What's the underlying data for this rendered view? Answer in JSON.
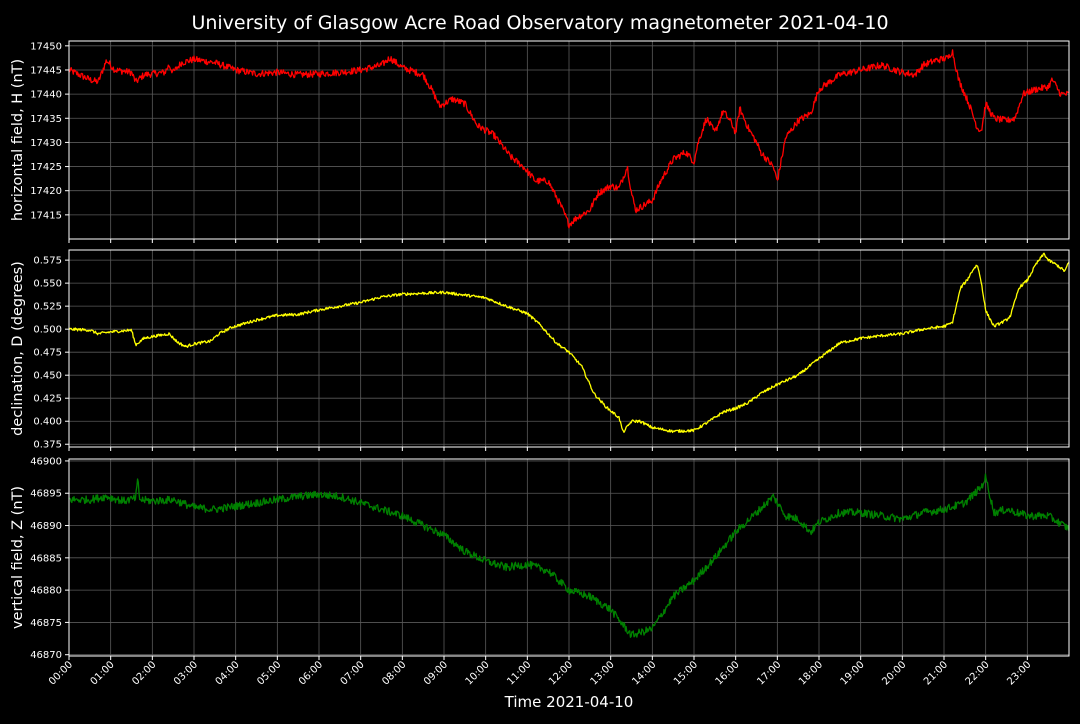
{
  "chart_data": {
    "type": "line",
    "title": "University of Glasgow Acre Road Observatory magnetometer 2021-04-10",
    "xlabel": "Time 2021-04-10",
    "x_ticks": [
      "00:00",
      "01:00",
      "02:00",
      "03:00",
      "04:00",
      "05:00",
      "06:00",
      "07:00",
      "08:00",
      "09:00",
      "10:00",
      "11:00",
      "12:00",
      "13:00",
      "14:00",
      "15:00",
      "16:00",
      "17:00",
      "18:00",
      "19:00",
      "20:00",
      "21:00",
      "22:00",
      "23:00"
    ],
    "xlim_hours": [
      0,
      24
    ],
    "grid": true,
    "background": "#000000",
    "panels": [
      {
        "ylabel": "horizontal field, H (nT)",
        "color": "#ff0000",
        "ylim": [
          17410,
          17451
        ],
        "y_ticks": [
          17415,
          17420,
          17425,
          17430,
          17435,
          17440,
          17445,
          17450
        ],
        "y_tick_decimals": 0,
        "noise": 0.7,
        "points": [
          [
            0,
            17445
          ],
          [
            0.5,
            17443
          ],
          [
            0.7,
            17442.5
          ],
          [
            0.9,
            17447
          ],
          [
            1.1,
            17445
          ],
          [
            1.5,
            17444.5
          ],
          [
            1.6,
            17442.5
          ],
          [
            1.8,
            17444
          ],
          [
            2.3,
            17444.5
          ],
          [
            2.4,
            17446
          ],
          [
            2.5,
            17444.5
          ],
          [
            2.7,
            17446.5
          ],
          [
            3.0,
            17447.2
          ],
          [
            3.5,
            17446.5
          ],
          [
            4.0,
            17445
          ],
          [
            4.5,
            17444.2
          ],
          [
            5.0,
            17444.5
          ],
          [
            5.5,
            17444
          ],
          [
            6.0,
            17444.2
          ],
          [
            6.5,
            17444.5
          ],
          [
            7.0,
            17445
          ],
          [
            7.5,
            17446
          ],
          [
            7.7,
            17447.5
          ],
          [
            8.0,
            17445.5
          ],
          [
            8.5,
            17444
          ],
          [
            8.7,
            17441
          ],
          [
            8.9,
            17437.5
          ],
          [
            9.2,
            17439
          ],
          [
            9.5,
            17438
          ],
          [
            9.8,
            17433.5
          ],
          [
            10.2,
            17431.5
          ],
          [
            10.6,
            17427
          ],
          [
            10.9,
            17425
          ],
          [
            11.2,
            17422
          ],
          [
            11.5,
            17422
          ],
          [
            11.8,
            17417
          ],
          [
            12.0,
            17413
          ],
          [
            12.2,
            17414.5
          ],
          [
            12.5,
            17416
          ],
          [
            12.7,
            17419.5
          ],
          [
            13.0,
            17421
          ],
          [
            13.2,
            17420.5
          ],
          [
            13.4,
            17425
          ],
          [
            13.5,
            17419.5
          ],
          [
            13.6,
            17416
          ],
          [
            13.8,
            17417
          ],
          [
            14.0,
            17418
          ],
          [
            14.2,
            17422
          ],
          [
            14.5,
            17426.5
          ],
          [
            14.8,
            17428
          ],
          [
            15.0,
            17426
          ],
          [
            15.1,
            17430
          ],
          [
            15.3,
            17435
          ],
          [
            15.5,
            17432
          ],
          [
            15.7,
            17436.5
          ],
          [
            15.9,
            17434
          ],
          [
            16.0,
            17432
          ],
          [
            16.1,
            17437
          ],
          [
            16.3,
            17433
          ],
          [
            16.5,
            17430
          ],
          [
            16.6,
            17428
          ],
          [
            16.9,
            17425
          ],
          [
            17.0,
            17422
          ],
          [
            17.2,
            17431
          ],
          [
            17.5,
            17434.5
          ],
          [
            17.8,
            17436
          ],
          [
            18.0,
            17441
          ],
          [
            18.5,
            17444
          ],
          [
            19.0,
            17445
          ],
          [
            19.5,
            17446
          ],
          [
            20.0,
            17444.5
          ],
          [
            20.3,
            17444
          ],
          [
            20.5,
            17446
          ],
          [
            20.8,
            17447
          ],
          [
            21.1,
            17447.5
          ],
          [
            21.2,
            17449
          ],
          [
            21.35,
            17443
          ],
          [
            21.6,
            17438
          ],
          [
            21.8,
            17433
          ],
          [
            21.9,
            17432.5
          ],
          [
            22.0,
            17438
          ],
          [
            22.2,
            17435
          ],
          [
            22.5,
            17434.5
          ],
          [
            22.7,
            17435
          ],
          [
            22.9,
            17440
          ],
          [
            23.2,
            17441
          ],
          [
            23.5,
            17441.5
          ],
          [
            23.6,
            17443
          ],
          [
            23.8,
            17440
          ],
          [
            24.0,
            17440
          ]
        ]
      },
      {
        "ylabel": "declination, D (degrees)",
        "color": "#ffff00",
        "ylim": [
          0.372,
          0.586
        ],
        "y_ticks": [
          0.375,
          0.4,
          0.425,
          0.45,
          0.475,
          0.5,
          0.525,
          0.55,
          0.575
        ],
        "y_tick_decimals": 3,
        "noise": 0.0015,
        "points": [
          [
            0,
            0.5
          ],
          [
            0.5,
            0.499
          ],
          [
            0.7,
            0.495
          ],
          [
            1.0,
            0.497
          ],
          [
            1.5,
            0.499
          ],
          [
            1.6,
            0.483
          ],
          [
            1.8,
            0.49
          ],
          [
            2.0,
            0.492
          ],
          [
            2.4,
            0.495
          ],
          [
            2.6,
            0.486
          ],
          [
            2.8,
            0.481
          ],
          [
            3.0,
            0.484
          ],
          [
            3.4,
            0.487
          ],
          [
            3.6,
            0.495
          ],
          [
            3.9,
            0.502
          ],
          [
            4.5,
            0.51
          ],
          [
            5.0,
            0.515
          ],
          [
            5.5,
            0.516
          ],
          [
            6.0,
            0.521
          ],
          [
            7.0,
            0.529
          ],
          [
            7.5,
            0.535
          ],
          [
            8.0,
            0.538
          ],
          [
            8.5,
            0.539
          ],
          [
            9.0,
            0.54
          ],
          [
            10.0,
            0.534
          ],
          [
            10.5,
            0.525
          ],
          [
            11.0,
            0.517
          ],
          [
            11.3,
            0.505
          ],
          [
            11.7,
            0.485
          ],
          [
            12.0,
            0.475
          ],
          [
            12.3,
            0.46
          ],
          [
            12.6,
            0.43
          ],
          [
            12.9,
            0.415
          ],
          [
            13.2,
            0.404
          ],
          [
            13.3,
            0.388
          ],
          [
            13.5,
            0.4
          ],
          [
            13.7,
            0.4
          ],
          [
            14.0,
            0.393
          ],
          [
            14.5,
            0.389
          ],
          [
            15.0,
            0.39
          ],
          [
            15.3,
            0.398
          ],
          [
            15.7,
            0.41
          ],
          [
            16.0,
            0.414
          ],
          [
            16.3,
            0.42
          ],
          [
            16.6,
            0.43
          ],
          [
            17.0,
            0.44
          ],
          [
            17.5,
            0.45
          ],
          [
            18.0,
            0.468
          ],
          [
            18.5,
            0.485
          ],
          [
            19.0,
            0.49
          ],
          [
            19.5,
            0.493
          ],
          [
            20.0,
            0.495
          ],
          [
            20.5,
            0.5
          ],
          [
            21.0,
            0.503
          ],
          [
            21.2,
            0.507
          ],
          [
            21.4,
            0.545
          ],
          [
            21.55,
            0.553
          ],
          [
            21.7,
            0.565
          ],
          [
            21.8,
            0.57
          ],
          [
            21.9,
            0.55
          ],
          [
            22.0,
            0.52
          ],
          [
            22.2,
            0.503
          ],
          [
            22.5,
            0.51
          ],
          [
            22.6,
            0.515
          ],
          [
            22.8,
            0.545
          ],
          [
            23.0,
            0.553
          ],
          [
            23.2,
            0.57
          ],
          [
            23.4,
            0.582
          ],
          [
            23.5,
            0.575
          ],
          [
            23.7,
            0.57
          ],
          [
            23.9,
            0.563
          ],
          [
            24.0,
            0.573
          ]
        ]
      },
      {
        "ylabel": "vertical field, Z (nT)",
        "color": "#008000",
        "ylim": [
          46869.8,
          46900.3
        ],
        "y_ticks": [
          46870,
          46875,
          46880,
          46885,
          46890,
          46895,
          46900
        ],
        "y_tick_decimals": 0,
        "noise": 0.6,
        "points": [
          [
            0,
            46894
          ],
          [
            0.5,
            46894
          ],
          [
            0.9,
            46894.5
          ],
          [
            1.3,
            46893.8
          ],
          [
            1.6,
            46894.2
          ],
          [
            1.65,
            46897
          ],
          [
            1.7,
            46894
          ],
          [
            2.0,
            46893.8
          ],
          [
            2.5,
            46894
          ],
          [
            3.0,
            46892.8
          ],
          [
            3.5,
            46892.5
          ],
          [
            4.0,
            46893
          ],
          [
            4.5,
            46893.5
          ],
          [
            5.0,
            46894
          ],
          [
            5.5,
            46894.5
          ],
          [
            6.0,
            46894.8
          ],
          [
            6.5,
            46894.5
          ],
          [
            7.0,
            46893.5
          ],
          [
            7.5,
            46892.5
          ],
          [
            8.0,
            46891.5
          ],
          [
            8.5,
            46890
          ],
          [
            9.0,
            46888.5
          ],
          [
            9.5,
            46886
          ],
          [
            10.0,
            46884.5
          ],
          [
            10.5,
            46883.5
          ],
          [
            11.0,
            46884
          ],
          [
            11.5,
            46883
          ],
          [
            12.0,
            46880
          ],
          [
            12.5,
            46879
          ],
          [
            13.0,
            46877
          ],
          [
            13.5,
            46873
          ],
          [
            14.0,
            46874
          ],
          [
            14.5,
            46879
          ],
          [
            15.0,
            46881.5
          ],
          [
            15.5,
            46885
          ],
          [
            16.0,
            46889
          ],
          [
            16.5,
            46892
          ],
          [
            16.9,
            46894.5
          ],
          [
            17.2,
            46891.5
          ],
          [
            17.5,
            46891
          ],
          [
            17.8,
            46889
          ],
          [
            18.0,
            46890.5
          ],
          [
            18.5,
            46892
          ],
          [
            19.0,
            46892
          ],
          [
            19.5,
            46891.5
          ],
          [
            20.0,
            46891
          ],
          [
            20.5,
            46892
          ],
          [
            21.0,
            46892.5
          ],
          [
            21.5,
            46893.5
          ],
          [
            21.9,
            46896
          ],
          [
            22.0,
            46897.5
          ],
          [
            22.2,
            46892
          ],
          [
            22.5,
            46892.5
          ],
          [
            23.0,
            46891.5
          ],
          [
            23.5,
            46891.5
          ],
          [
            24.0,
            46889.5
          ]
        ]
      }
    ]
  }
}
